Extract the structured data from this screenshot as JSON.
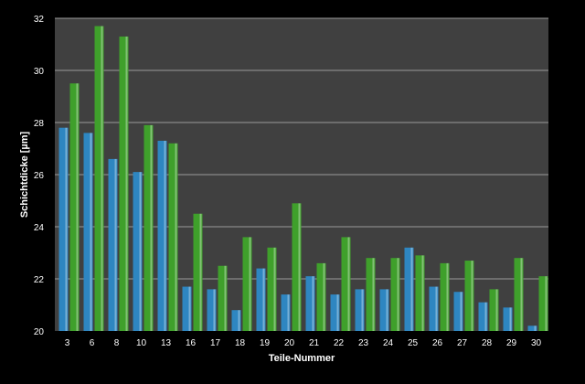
{
  "chart_data": {
    "type": "bar",
    "title": "",
    "xlabel": "Teile-Nummer",
    "ylabel": "Schichtdicke [µm]",
    "ylim": [
      20,
      32
    ],
    "yticks": [
      20,
      22,
      24,
      26,
      28,
      30,
      32
    ],
    "grid": true,
    "legend": "none",
    "categories": [
      "3",
      "6",
      "8",
      "10",
      "13",
      "16",
      "17",
      "18",
      "19",
      "20",
      "21",
      "22",
      "23",
      "24",
      "25",
      "26",
      "27",
      "28",
      "29",
      "30"
    ],
    "series": [
      {
        "color": "#2e86c1",
        "values": [
          27.8,
          27.6,
          26.6,
          26.1,
          27.3,
          21.7,
          21.6,
          20.8,
          22.4,
          21.4,
          22.1,
          21.4,
          21.6,
          21.6,
          23.2,
          21.7,
          21.5,
          21.1,
          20.9,
          20.2
        ]
      },
      {
        "color": "#3fa02b",
        "values": [
          29.5,
          31.7,
          31.3,
          27.9,
          27.2,
          24.5,
          22.5,
          23.6,
          23.2,
          24.9,
          22.6,
          23.6,
          22.8,
          22.8,
          22.9,
          22.6,
          22.7,
          21.6,
          22.8,
          22.1
        ]
      }
    ]
  },
  "colors": {
    "plot_background": "#404040",
    "gridline": "#9a9a9a",
    "axis": "#ffffff"
  }
}
